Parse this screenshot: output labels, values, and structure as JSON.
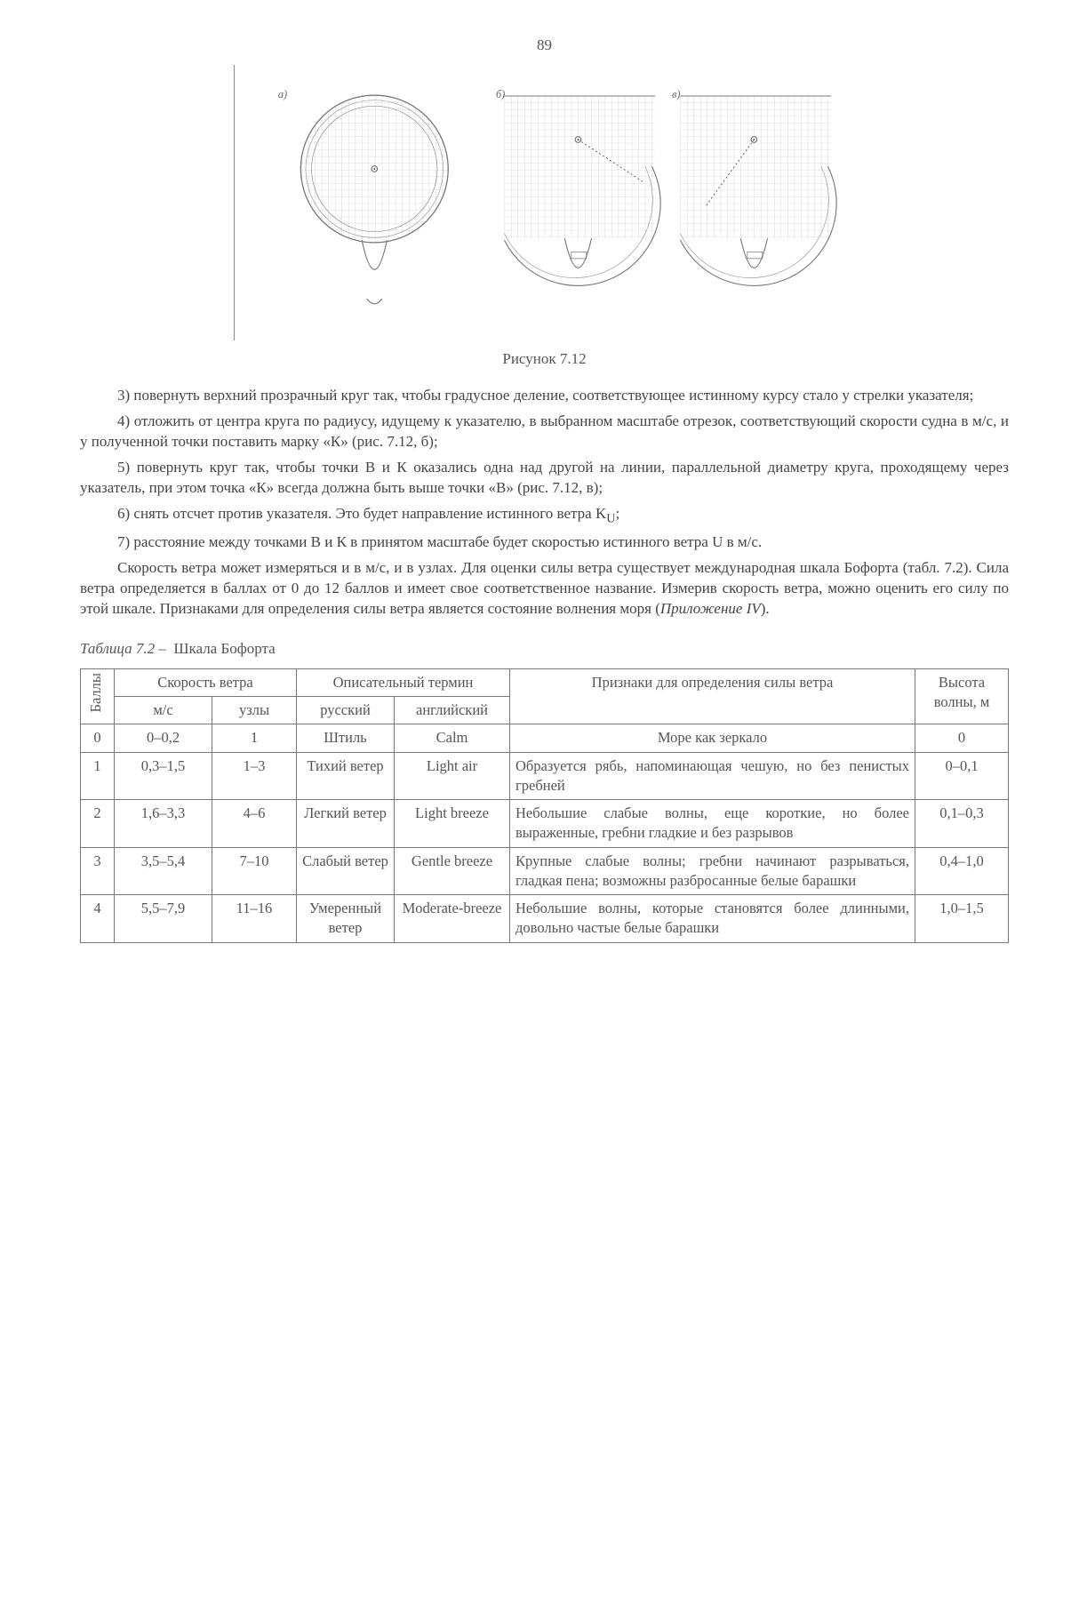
{
  "page_number": "89",
  "figure": {
    "caption": "Рисунок 7.12",
    "panel_labels": [
      "а)",
      "б)",
      "в)"
    ],
    "colors": {
      "stroke": "#888888",
      "grid": "#aaaaaa",
      "background": "#ffffff"
    }
  },
  "paragraphs": {
    "p3": "3) повернуть верхний прозрачный круг так, чтобы градусное деление, соответствующее истинному курсу стало у стрелки указателя;",
    "p4": "4) отложить от центра круга по радиусу, идущему к указателю, в выбранном масштабе отрезок, соответствующий скорости судна в м/с, и у полученной точки поставить марку «К» (рис. 7.12, б);",
    "p5": "5) повернуть круг так, чтобы точки В и К оказались одна над другой на линии, параллельной диаметру круга, проходящему через указатель, при этом точка «К» всегда должна быть выше точки «В» (рис. 7.12, в);",
    "p6": "6) снять отсчет против указателя. Это будет направление истинного ветра K",
    "p6_sub": "U",
    "p6_tail": ";",
    "p7": "7) расстояние между точками В и К в принятом масштабе будет скоростью истинного ветра U в м/с.",
    "p8a": "Скорость ветра может измеряться и в м/с, и в узлах. Для оценки силы ветра существует международная шкала Бофорта (табл. 7.2). Сила ветра определяется в баллах от 0 до 12 баллов и имеет свое соответственное название. Измерив скорость ветра, можно оценить его силу по этой шкале. Признаками для определения силы ветра является состояние волнения моря (",
    "p8_italic": "Приложение IV",
    "p8b": ")."
  },
  "table": {
    "caption_label": "Таблица 7.2 –",
    "caption_title": "Шкала Бофорта",
    "headers": {
      "balls": "Баллы",
      "speed_group": "Скорость ветра",
      "ms": "м/с",
      "knots": "узлы",
      "term_group": "Описательный термин",
      "ru": "русский",
      "en": "английский",
      "signs": "Признаки для определения силы ветра",
      "wave": "Высота волны, м"
    },
    "rows": [
      {
        "ball": "0",
        "ms": "0–0,2",
        "knots": "1",
        "ru": "Штиль",
        "en": "Calm",
        "desc": "Море как зеркало",
        "wave": "0"
      },
      {
        "ball": "1",
        "ms": "0,3–1,5",
        "knots": "1–3",
        "ru": "Тихий ветер",
        "en": "Light air",
        "desc": "Образуется рябь, напоминающая чешую, но без пенистых гребней",
        "wave": "0–0,1"
      },
      {
        "ball": "2",
        "ms": "1,6–3,3",
        "knots": "4–6",
        "ru": "Легкий ветер",
        "en": "Light breeze",
        "desc": "Небольшие слабые волны, еще короткие, но более выраженные, гребни гладкие и без разрывов",
        "wave": "0,1–0,3"
      },
      {
        "ball": "3",
        "ms": "3,5–5,4",
        "knots": "7–10",
        "ru": "Слабый ветер",
        "en": "Gentle breeze",
        "desc": "Крупные слабые волны; гребни начинают разрываться, гладкая пена; возможны разбросанные белые барашки",
        "wave": "0,4–1,0"
      },
      {
        "ball": "4",
        "ms": "5,5–7,9",
        "knots": "11–16",
        "ru": "Умеренный ветер",
        "en": "Moderate-breeze",
        "desc": "Небольшие волны, которые становятся более длинными, довольно частые белые барашки",
        "wave": "1,0–1,5"
      }
    ]
  }
}
